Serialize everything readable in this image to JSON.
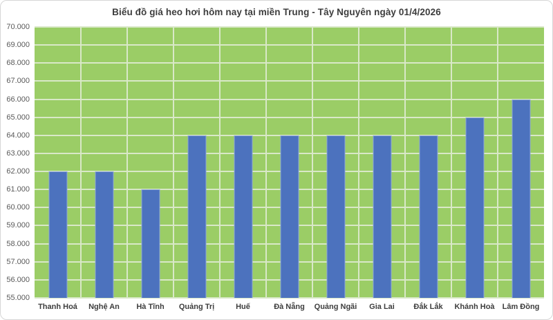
{
  "chart_data": {
    "type": "bar",
    "title": "Biểu đồ giá heo hơi hôm nay tại miền Trung - Tây Nguyên ngày 01/4/2026",
    "xlabel": "",
    "ylabel": "",
    "categories": [
      "Thanh Hoá",
      "Nghệ An",
      "Hà Tĩnh",
      "Quảng Trị",
      "Huế",
      "Đà Nẵng",
      "Quảng Ngãi",
      "Gia Lai",
      "Đắk Lắk",
      "Khánh Hoà",
      "Lâm Đồng"
    ],
    "values": [
      62000,
      62000,
      61000,
      64000,
      64000,
      64000,
      64000,
      64000,
      64000,
      65000,
      66000
    ],
    "ylim": [
      55000,
      70000
    ],
    "ytick_step": 1000,
    "ytick_labels": [
      "55.000",
      "56.000",
      "57.000",
      "58.000",
      "59.000",
      "60.000",
      "61.000",
      "62.000",
      "63.000",
      "64.000",
      "65.000",
      "66.000",
      "67.000",
      "68.000",
      "69.000",
      "70.000"
    ],
    "grid": "both",
    "legend": "none",
    "colors": {
      "card_bg": "#ffffff",
      "card_border": "#d6d6d6",
      "plot_bg": "#9bcd66",
      "gridline": "#d9e8c8",
      "bar": "#4c72be",
      "bar_border": "#8ea7d8",
      "title_text": "#3d3d3d",
      "axis_text": "#595959",
      "xlabel_text": "#3d3d3d"
    }
  }
}
